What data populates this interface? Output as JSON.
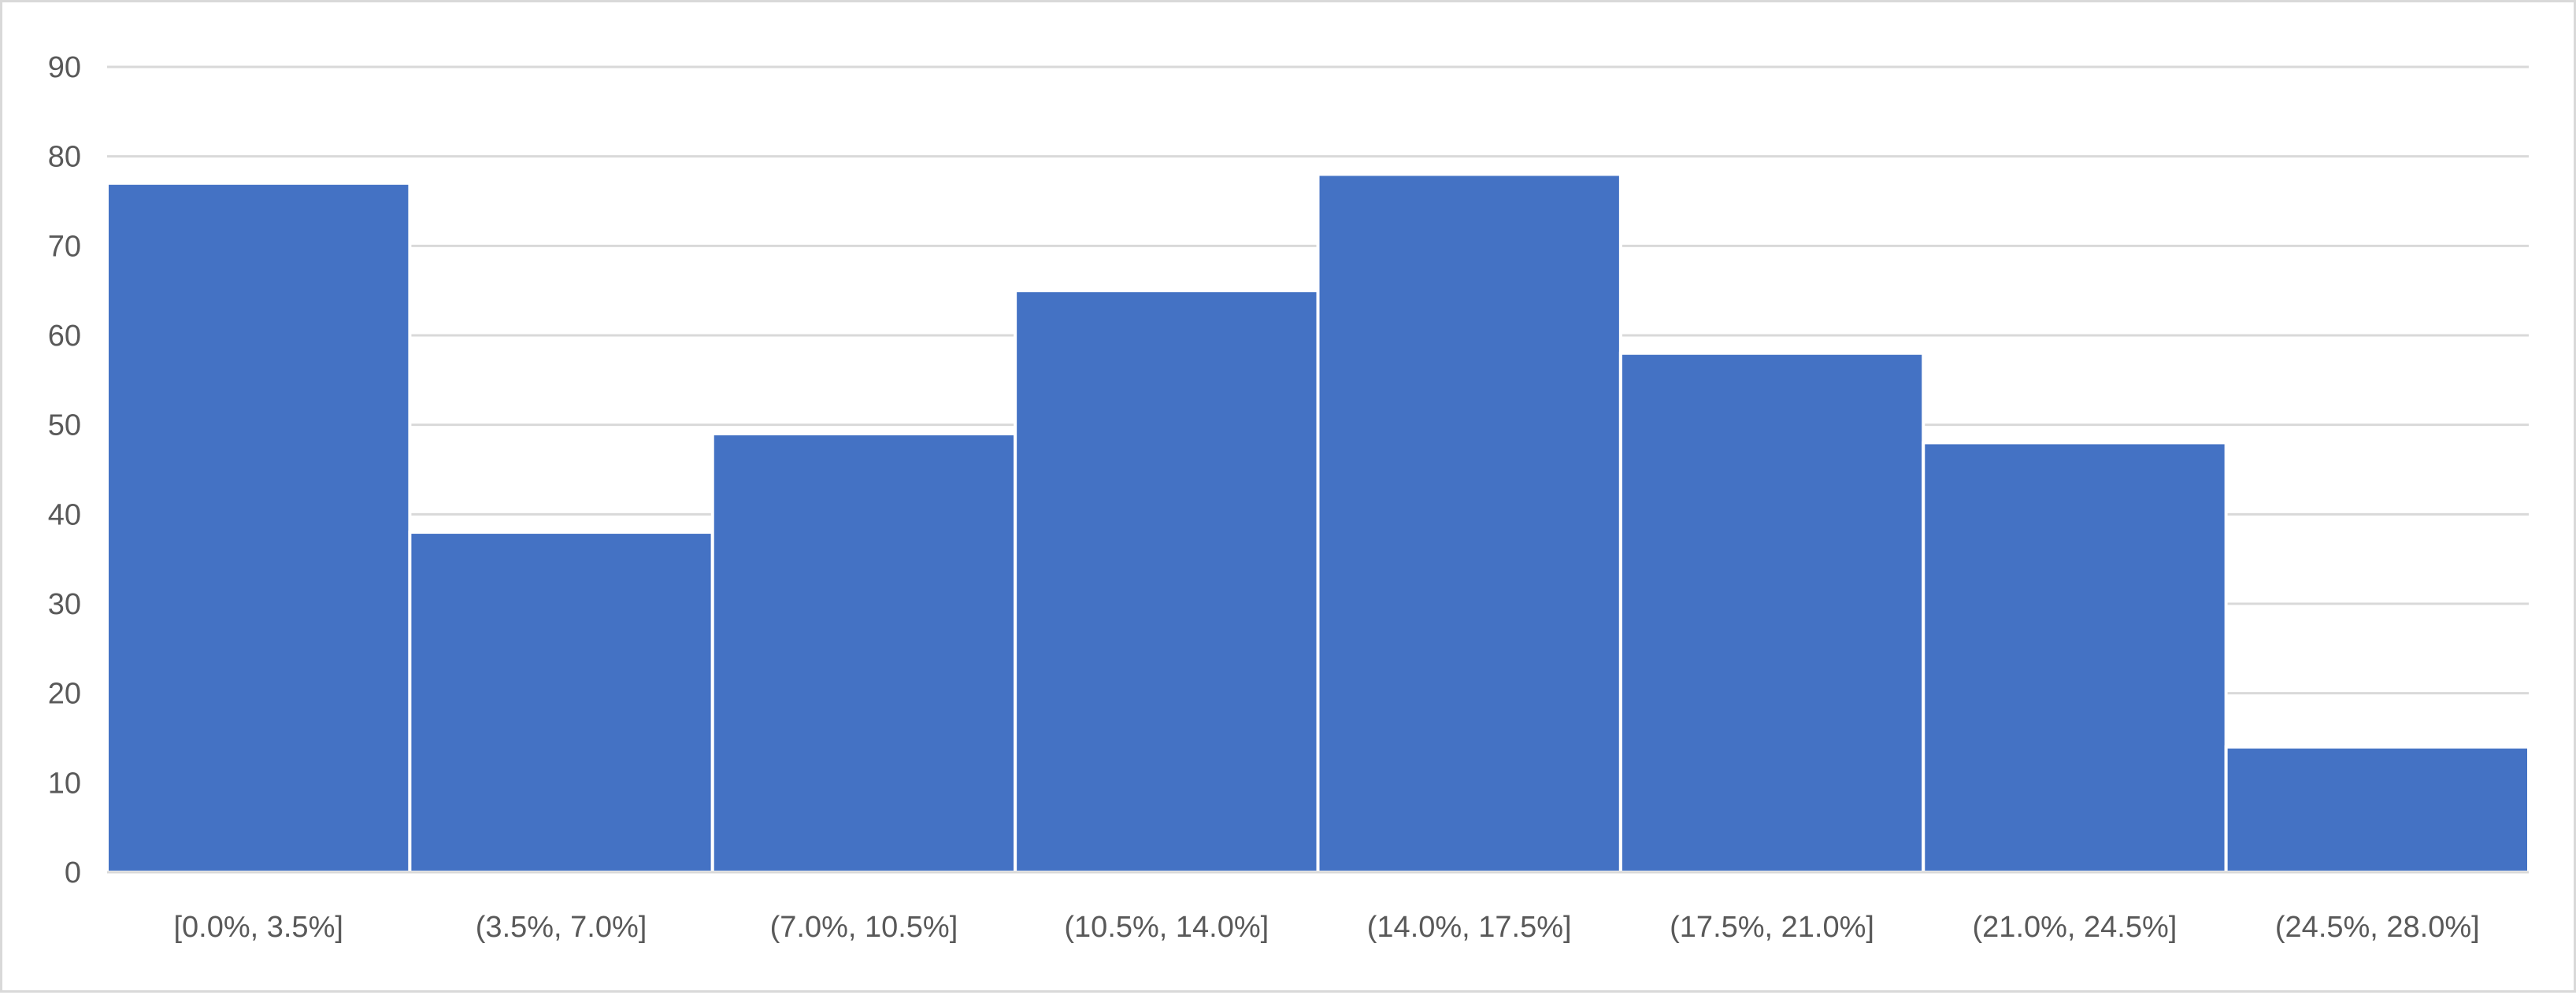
{
  "chart_data": {
    "type": "bar",
    "categories": [
      "[0.0%, 3.5%]",
      "(3.5%, 7.0%]",
      "(7.0%, 10.5%]",
      "(10.5%, 14.0%]",
      "(14.0%, 17.5%]",
      "(17.5%, 21.0%]",
      "(21.0%, 24.5%]",
      "(24.5%, 28.0%]"
    ],
    "values": [
      77,
      38,
      49,
      65,
      78,
      58,
      48,
      14
    ],
    "title": "",
    "xlabel": "",
    "ylabel": "",
    "ylim": [
      0,
      90
    ],
    "yticks": [
      0,
      10,
      20,
      30,
      40,
      50,
      60,
      70,
      80,
      90
    ],
    "grid": true,
    "bar_color": "#4472C4",
    "legend": "none"
  }
}
